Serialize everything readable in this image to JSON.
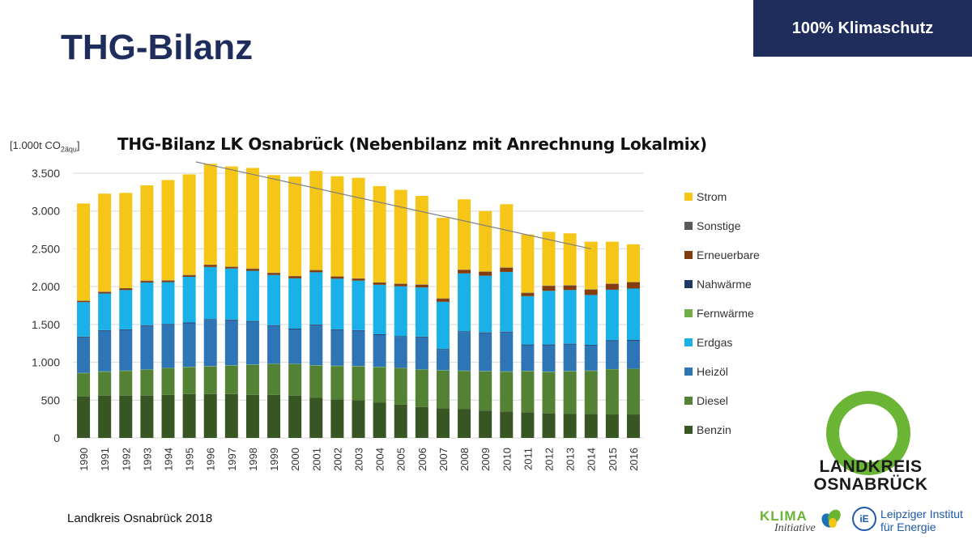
{
  "slide": {
    "title": "THG-Bilanz",
    "badge": "100% Klimaschutz",
    "source": "Landkreis Osnabrück 2018"
  },
  "unit": {
    "prefix": "[1.000t CO",
    "sub": "2äqu",
    "suffix": "]"
  },
  "logos": {
    "landkreis_line1": "LANDKREIS",
    "landkreis_line2": "OSNABRÜCK",
    "klima_line1": "KLIMA",
    "klima_line2": "Initiative",
    "lie_line1": "Leipziger Institut",
    "lie_line2": "für Energie",
    "lie_icon": "iE"
  },
  "colors": {
    "Benzin": "#375623",
    "Diesel": "#548235",
    "Fernwärme": "#70ad47",
    "Heizöl": "#2e75b6",
    "Nahwärme": "#203864",
    "Erdgas": "#1ab0e8",
    "Erneuerbare": "#843c0c",
    "Sonstige": "#595959",
    "Strom": "#f5c518"
  },
  "chart_data": {
    "type": "bar",
    "stacked": true,
    "title": "THG-Bilanz LK Osnabrück (Nebenbilanz mit Anrechnung Lokalmix)",
    "ylabel": "[1.000t CO2äqu]",
    "ylim": [
      0,
      3500
    ],
    "yticks": [
      0,
      500,
      1000,
      1500,
      2000,
      2500,
      3000,
      3500
    ],
    "ytick_labels": [
      "0",
      "500",
      "1.000",
      "1.500",
      "2.000",
      "2.500",
      "3.000",
      "3.500"
    ],
    "grid": true,
    "legend_position": "right",
    "legend_order": [
      "Strom",
      "Sonstige",
      "Erneuerbare",
      "Nahwärme",
      "Fernwärme",
      "Erdgas",
      "Heizöl",
      "Diesel",
      "Benzin"
    ],
    "categories": [
      "1990",
      "1991",
      "1992",
      "1993",
      "1994",
      "1995",
      "1996",
      "1997",
      "1998",
      "1999",
      "2000",
      "2001",
      "2002",
      "2003",
      "2004",
      "2005",
      "2006",
      "2007",
      "2008",
      "2009",
      "2010",
      "2011",
      "2012",
      "2013",
      "2014",
      "2015",
      "2016"
    ],
    "series": [
      {
        "name": "Benzin",
        "values": [
          550,
          560,
          560,
          560,
          570,
          580,
          580,
          580,
          570,
          570,
          560,
          530,
          510,
          500,
          470,
          440,
          410,
          390,
          380,
          360,
          350,
          340,
          325,
          320,
          315,
          310,
          310
        ]
      },
      {
        "name": "Diesel",
        "values": [
          305,
          315,
          325,
          340,
          350,
          355,
          365,
          375,
          395,
          405,
          415,
          425,
          440,
          445,
          465,
          480,
          490,
          500,
          505,
          520,
          525,
          540,
          545,
          560,
          570,
          595,
          600
        ]
      },
      {
        "name": "Fernwärme",
        "values": [
          5,
          5,
          5,
          5,
          5,
          5,
          5,
          5,
          5,
          5,
          5,
          5,
          5,
          5,
          5,
          5,
          5,
          5,
          5,
          5,
          5,
          5,
          5,
          5,
          5,
          5,
          5
        ]
      },
      {
        "name": "Heizöl",
        "values": [
          470,
          535,
          535,
          575,
          570,
          575,
          610,
          595,
          565,
          500,
          455,
          530,
          470,
          465,
          420,
          410,
          425,
          270,
          510,
          500,
          515,
          340,
          350,
          350,
          330,
          370,
          370
        ]
      },
      {
        "name": "Nahwärme",
        "values": [
          10,
          10,
          10,
          10,
          10,
          10,
          10,
          10,
          10,
          10,
          10,
          10,
          10,
          10,
          10,
          10,
          10,
          10,
          10,
          10,
          10,
          10,
          10,
          10,
          10,
          10,
          10
        ]
      },
      {
        "name": "Erdgas",
        "values": [
          455,
          485,
          520,
          565,
          555,
          605,
          690,
          675,
          665,
          665,
          665,
          690,
          670,
          655,
          655,
          660,
          650,
          625,
          765,
          750,
          790,
          640,
          710,
          710,
          660,
          670,
          680
        ]
      },
      {
        "name": "Erneuerbare",
        "values": [
          15,
          20,
          20,
          20,
          20,
          20,
          25,
          20,
          25,
          25,
          25,
          25,
          25,
          25,
          25,
          30,
          35,
          40,
          45,
          50,
          55,
          40,
          65,
          60,
          70,
          75,
          80
        ]
      },
      {
        "name": "Sonstige",
        "values": [
          5,
          5,
          5,
          5,
          5,
          5,
          5,
          5,
          5,
          5,
          5,
          5,
          5,
          5,
          5,
          5,
          5,
          5,
          5,
          5,
          5,
          5,
          5,
          5,
          5,
          5,
          5
        ]
      },
      {
        "name": "Strom",
        "values": [
          1285,
          1295,
          1260,
          1260,
          1325,
          1330,
          1335,
          1325,
          1330,
          1290,
          1315,
          1310,
          1325,
          1330,
          1275,
          1240,
          1170,
          1065,
          930,
          800,
          835,
          770,
          710,
          685,
          630,
          555,
          500
        ]
      }
    ],
    "trendline": {
      "from": {
        "x": "1996",
        "y": 3650
      },
      "to": {
        "x": "2014",
        "y": 2500
      }
    }
  }
}
